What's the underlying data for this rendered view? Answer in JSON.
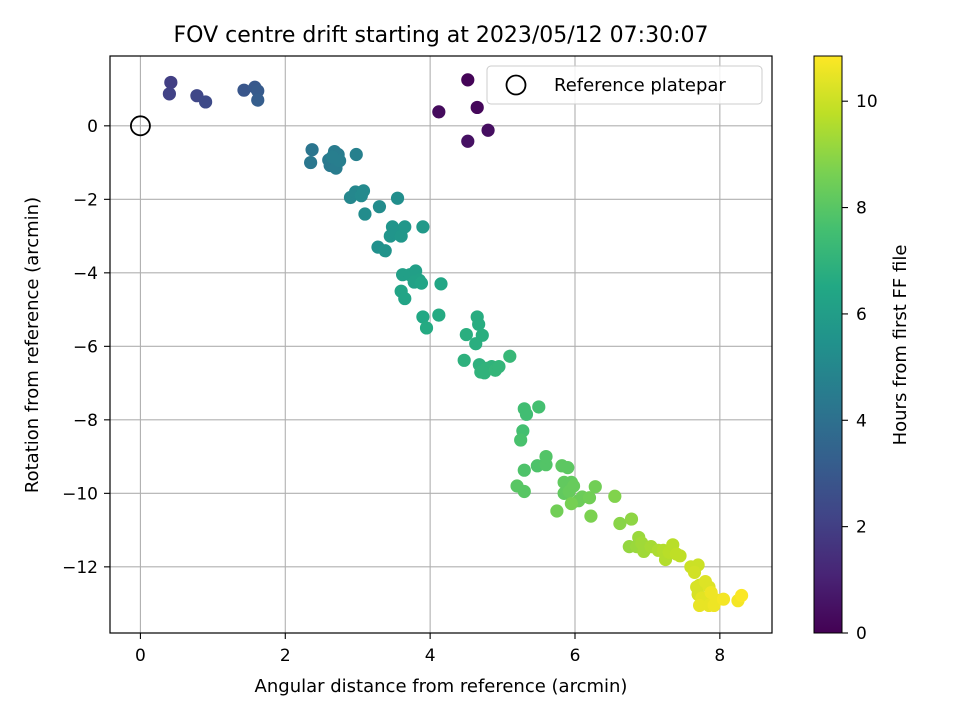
{
  "chart_data": {
    "type": "scatter",
    "title": "FOV centre drift starting at 2023/05/12 07:30:07",
    "xlabel": "Angular distance from reference (arcmin)",
    "ylabel": "Rotation from reference (arcmin)",
    "xlim": [
      -0.42,
      8.72
    ],
    "ylim": [
      -13.8,
      1.9
    ],
    "xticks": [
      0,
      2,
      4,
      6,
      8
    ],
    "yticks": [
      0,
      -2,
      -4,
      -6,
      -8,
      -10,
      -12
    ],
    "xtick_labels": [
      "0",
      "2",
      "4",
      "6",
      "8"
    ],
    "ytick_labels": [
      "0",
      "−2",
      "−4",
      "−6",
      "−8",
      "−10",
      "−12"
    ],
    "grid": true,
    "legend": {
      "position": "top-right",
      "entries": [
        "Reference platepar"
      ]
    },
    "reference_point": {
      "x": 0,
      "y": 0
    },
    "colorbar": {
      "label": "Hours from first FF file",
      "range": [
        0,
        10.85
      ],
      "ticks": [
        0,
        2,
        4,
        6,
        8,
        10
      ],
      "tick_labels": [
        "0",
        "2",
        "4",
        "6",
        "8",
        "10"
      ],
      "colormap": "viridis"
    },
    "points": [
      [
        4.52,
        1.25,
        0.1
      ],
      [
        4.65,
        0.5,
        0.2
      ],
      [
        4.12,
        0.38,
        0.3
      ],
      [
        4.8,
        -0.12,
        0.4
      ],
      [
        4.52,
        -0.42,
        0.5
      ],
      [
        0.42,
        1.18,
        2.0
      ],
      [
        0.4,
        0.87,
        2.1
      ],
      [
        0.78,
        0.82,
        2.3
      ],
      [
        0.9,
        0.65,
        2.4
      ],
      [
        1.43,
        0.97,
        2.9
      ],
      [
        1.58,
        1.05,
        3.0
      ],
      [
        1.62,
        0.95,
        3.1
      ],
      [
        1.62,
        0.7,
        3.2
      ],
      [
        2.37,
        -0.65,
        4.2
      ],
      [
        2.35,
        -1.0,
        4.3
      ],
      [
        2.6,
        -0.93,
        4.4
      ],
      [
        2.62,
        -1.08,
        4.4
      ],
      [
        2.7,
        -1.15,
        4.5
      ],
      [
        2.68,
        -0.7,
        4.5
      ],
      [
        2.73,
        -0.78,
        4.5
      ],
      [
        2.75,
        -0.95,
        4.6
      ],
      [
        2.65,
        -0.85,
        4.6
      ],
      [
        2.98,
        -0.78,
        4.7
      ],
      [
        2.9,
        -1.95,
        5.0
      ],
      [
        2.97,
        -1.8,
        5.0
      ],
      [
        3.05,
        -1.9,
        5.1
      ],
      [
        3.08,
        -1.77,
        5.1
      ],
      [
        3.1,
        -2.4,
        5.2
      ],
      [
        3.3,
        -2.2,
        5.2
      ],
      [
        3.55,
        -1.97,
        5.3
      ],
      [
        3.28,
        -3.3,
        5.4
      ],
      [
        3.38,
        -3.4,
        5.5
      ],
      [
        3.45,
        -3.0,
        5.6
      ],
      [
        3.48,
        -2.75,
        5.6
      ],
      [
        3.52,
        -2.9,
        5.6
      ],
      [
        3.6,
        -3.0,
        5.7
      ],
      [
        3.65,
        -2.75,
        5.7
      ],
      [
        3.9,
        -2.75,
        5.8
      ],
      [
        3.62,
        -4.05,
        6.1
      ],
      [
        3.72,
        -4.05,
        6.1
      ],
      [
        3.8,
        -3.95,
        6.1
      ],
      [
        3.85,
        -4.2,
        6.2
      ],
      [
        3.78,
        -4.25,
        6.2
      ],
      [
        3.6,
        -4.5,
        6.3
      ],
      [
        3.65,
        -4.7,
        6.3
      ],
      [
        3.88,
        -4.28,
        6.3
      ],
      [
        4.15,
        -4.3,
        6.4
      ],
      [
        3.9,
        -5.2,
        6.5
      ],
      [
        3.95,
        -5.5,
        6.6
      ],
      [
        4.12,
        -5.15,
        6.6
      ],
      [
        4.65,
        -5.2,
        6.7
      ],
      [
        4.67,
        -5.4,
        6.7
      ],
      [
        4.5,
        -5.68,
        6.8
      ],
      [
        4.72,
        -5.7,
        6.8
      ],
      [
        4.63,
        -5.93,
        6.8
      ],
      [
        4.47,
        -6.38,
        6.9
      ],
      [
        4.68,
        -6.5,
        6.9
      ],
      [
        4.7,
        -6.7,
        7.0
      ],
      [
        4.78,
        -6.6,
        7.0
      ],
      [
        4.85,
        -6.55,
        7.0
      ],
      [
        4.75,
        -6.72,
        7.0
      ],
      [
        4.9,
        -6.65,
        7.1
      ],
      [
        4.95,
        -6.55,
        7.1
      ],
      [
        5.1,
        -6.27,
        7.2
      ],
      [
        5.3,
        -7.7,
        7.5
      ],
      [
        5.33,
        -7.85,
        7.5
      ],
      [
        5.5,
        -7.65,
        7.6
      ],
      [
        5.28,
        -8.3,
        7.6
      ],
      [
        5.25,
        -8.55,
        7.7
      ],
      [
        5.3,
        -9.37,
        7.8
      ],
      [
        5.48,
        -9.25,
        7.8
      ],
      [
        5.6,
        -9.22,
        7.9
      ],
      [
        5.6,
        -9.0,
        7.9
      ],
      [
        5.2,
        -9.8,
        8.0
      ],
      [
        5.3,
        -9.95,
        8.0
      ],
      [
        5.82,
        -9.25,
        8.1
      ],
      [
        5.9,
        -9.3,
        8.1
      ],
      [
        5.85,
        -9.7,
        8.2
      ],
      [
        5.95,
        -9.7,
        8.2
      ],
      [
        5.85,
        -10.0,
        8.2
      ],
      [
        5.92,
        -9.95,
        8.3
      ],
      [
        5.98,
        -9.8,
        8.3
      ],
      [
        6.05,
        -10.2,
        8.4
      ],
      [
        6.1,
        -10.1,
        8.4
      ],
      [
        6.2,
        -10.12,
        8.5
      ],
      [
        6.28,
        -9.82,
        8.5
      ],
      [
        5.75,
        -10.48,
        8.5
      ],
      [
        5.95,
        -10.28,
        8.6
      ],
      [
        6.22,
        -10.62,
        8.7
      ],
      [
        6.55,
        -10.08,
        8.8
      ],
      [
        6.62,
        -10.82,
        8.9
      ],
      [
        6.78,
        -10.7,
        9.0
      ],
      [
        6.75,
        -11.45,
        9.1
      ],
      [
        6.85,
        -11.45,
        9.2
      ],
      [
        6.88,
        -11.2,
        9.2
      ],
      [
        6.92,
        -11.35,
        9.3
      ],
      [
        6.95,
        -11.58,
        9.3
      ],
      [
        7.05,
        -11.45,
        9.4
      ],
      [
        7.15,
        -11.55,
        9.5
      ],
      [
        7.22,
        -11.55,
        9.6
      ],
      [
        7.25,
        -11.8,
        9.6
      ],
      [
        7.3,
        -11.6,
        9.7
      ],
      [
        7.35,
        -11.4,
        9.7
      ],
      [
        7.4,
        -11.65,
        9.8
      ],
      [
        7.45,
        -11.7,
        9.8
      ],
      [
        7.6,
        -12.0,
        10.0
      ],
      [
        7.7,
        -11.95,
        10.0
      ],
      [
        7.65,
        -12.15,
        10.1
      ],
      [
        7.72,
        -12.5,
        10.1
      ],
      [
        7.68,
        -12.55,
        10.2
      ],
      [
        7.7,
        -12.75,
        10.2
      ],
      [
        7.8,
        -12.4,
        10.3
      ],
      [
        7.85,
        -12.55,
        10.3
      ],
      [
        7.75,
        -12.85,
        10.4
      ],
      [
        7.82,
        -12.85,
        10.4
      ],
      [
        7.72,
        -13.05,
        10.5
      ],
      [
        7.85,
        -13.05,
        10.5
      ],
      [
        7.92,
        -13.05,
        10.6
      ],
      [
        7.95,
        -12.9,
        10.6
      ],
      [
        8.05,
        -12.88,
        10.7
      ],
      [
        8.25,
        -12.92,
        10.7
      ],
      [
        8.3,
        -12.78,
        10.8
      ],
      [
        7.88,
        -12.7,
        10.6
      ]
    ]
  }
}
